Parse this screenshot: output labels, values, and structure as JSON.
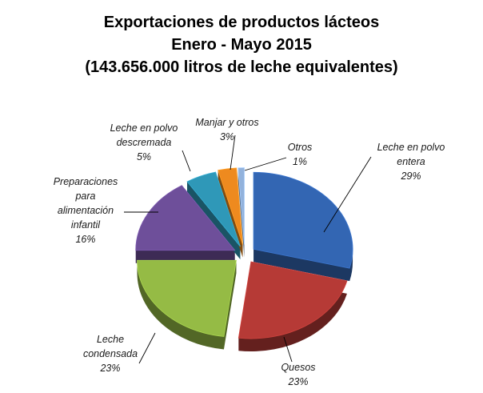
{
  "chart_data": {
    "type": "pie",
    "title_lines": [
      "Exportaciones de productos lácteos",
      "Enero - Mayo  2015",
      "(143.656.000  litros de leche equivalentes)"
    ],
    "slices": [
      {
        "label_lines": [
          "Leche en polvo",
          "entera"
        ],
        "pct_label": "29%",
        "value": 29,
        "color": "#3366b3"
      },
      {
        "label_lines": [
          "Quesos"
        ],
        "pct_label": "23%",
        "value": 23,
        "color": "#b63a36"
      },
      {
        "label_lines": [
          "Leche",
          "condensada"
        ],
        "pct_label": "23%",
        "value": 23,
        "color": "#95bb45"
      },
      {
        "label_lines": [
          "Preparaciones",
          "para",
          "alimentación",
          "infantil"
        ],
        "pct_label": "16%",
        "value": 16,
        "color": "#6e4f9a"
      },
      {
        "label_lines": [
          "Leche en polvo",
          "descremada"
        ],
        "pct_label": "5%",
        "value": 5,
        "color": "#2f98b8"
      },
      {
        "label_lines": [
          "Manjar y otros"
        ],
        "pct_label": "3%",
        "value": 3,
        "color": "#ee8a1f"
      },
      {
        "label_lines": [
          "Otros"
        ],
        "pct_label": "1%",
        "value": 1,
        "color": "#92b2dc"
      }
    ],
    "legend": "none",
    "style": "3d-exploded"
  }
}
